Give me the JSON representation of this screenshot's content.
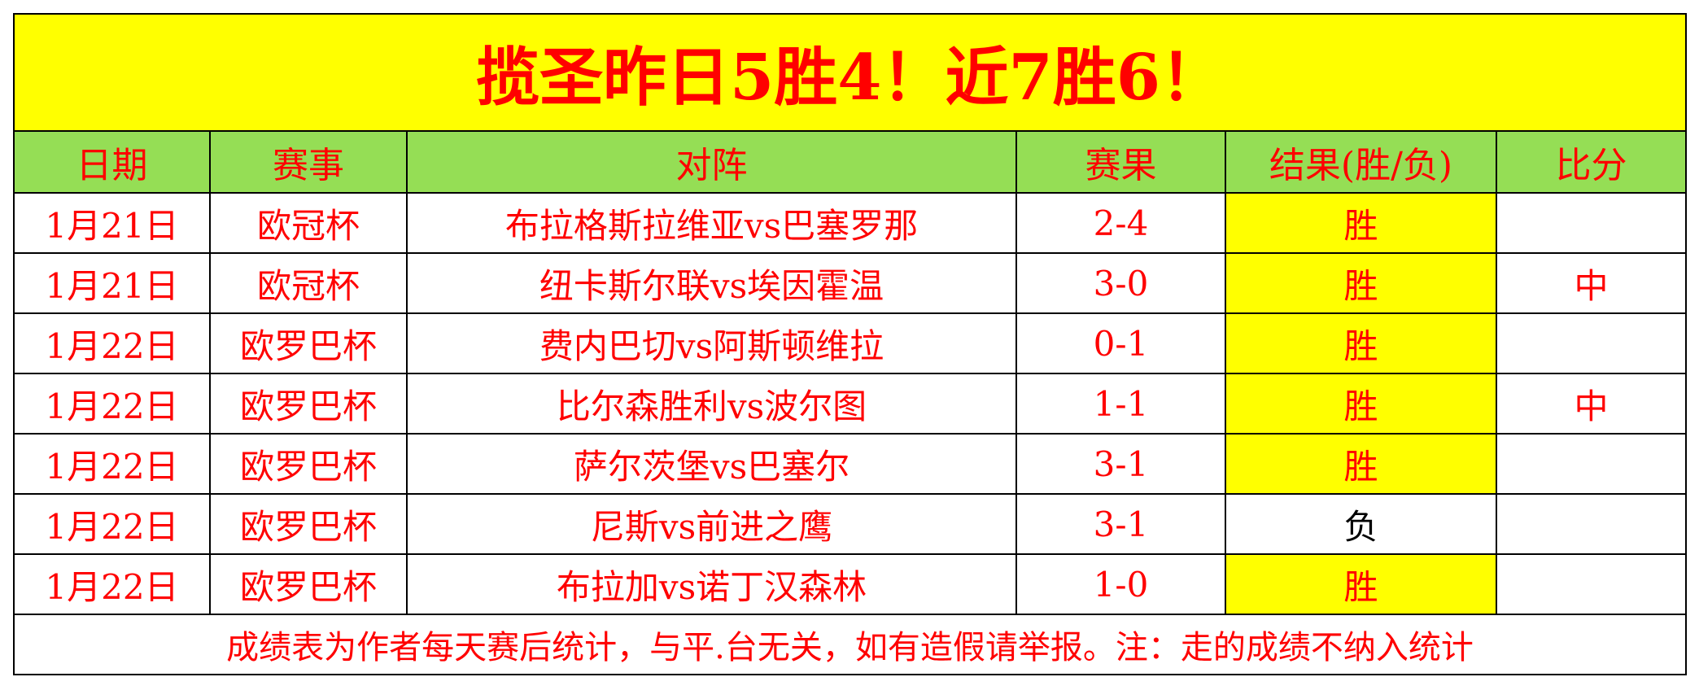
{
  "title": "揽圣昨日5胜4！近7胜6！",
  "headers": [
    "日期",
    "赛事",
    "对阵",
    "赛果",
    "结果(胜/负)",
    "比分"
  ],
  "rows": [
    {
      "date": "1月21日",
      "league": "欧冠杯",
      "match": "布拉格斯拉维亚vs巴塞罗那",
      "score": "2-4",
      "result": "胜",
      "hit": ""
    },
    {
      "date": "1月21日",
      "league": "欧冠杯",
      "match": "纽卡斯尔联vs埃因霍温",
      "score": "3-0",
      "result": "胜",
      "hit": "中"
    },
    {
      "date": "1月22日",
      "league": "欧罗巴杯",
      "match": "费内巴切vs阿斯顿维拉",
      "score": "0-1",
      "result": "胜",
      "hit": ""
    },
    {
      "date": "1月22日",
      "league": "欧罗巴杯",
      "match": "比尔森胜利vs波尔图",
      "score": "1-1",
      "result": "胜",
      "hit": "中"
    },
    {
      "date": "1月22日",
      "league": "欧罗巴杯",
      "match": "萨尔茨堡vs巴塞尔",
      "score": "3-1",
      "result": "胜",
      "hit": ""
    },
    {
      "date": "1月22日",
      "league": "欧罗巴杯",
      "match": "尼斯vs前进之鹰",
      "score": "3-1",
      "result": "负",
      "hit": ""
    },
    {
      "date": "1月22日",
      "league": "欧罗巴杯",
      "match": "布拉加vs诺丁汉森林",
      "score": "1-0",
      "result": "胜",
      "hit": ""
    }
  ],
  "footer": "成绩表为作者每天赛后统计，与平.台无关，如有造假请举报。注：走的成绩不纳入统计",
  "colors": {
    "text": "#ff0000",
    "title_bg": "#ffff00",
    "header_bg": "#95de55",
    "win_bg": "#ffff00",
    "lose_text": "#000000"
  }
}
